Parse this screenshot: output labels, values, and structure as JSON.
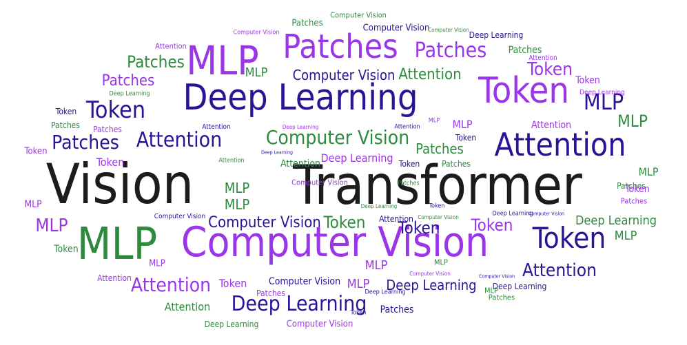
{
  "title_words": {
    "vision": "Vision",
    "transformer": "Transformer"
  },
  "words": [
    {
      "text": "Computer Vision",
      "color": "#9b35e8"
    },
    {
      "text": "MLP",
      "color": "#2e8b3e"
    },
    {
      "text": "Deep Learning",
      "color": "#2b1396"
    },
    {
      "text": "Token",
      "color": "#9b35e8"
    },
    {
      "text": "Attention",
      "color": "#2b1396"
    },
    {
      "text": "Patches",
      "color": "#9b35e8"
    },
    {
      "text": "MLP",
      "color": "#9b35e8"
    },
    {
      "text": "Token",
      "color": "#2b1396"
    },
    {
      "text": "Token",
      "color": "#2b1396"
    },
    {
      "text": "Patches",
      "color": "#9b35e8"
    },
    {
      "text": "Attention",
      "color": "#2b1396"
    },
    {
      "text": "Patches",
      "color": "#2b1396"
    },
    {
      "text": "Computer Vision",
      "color": "#2e8b3e"
    },
    {
      "text": "Computer Vision",
      "color": "#2b1396"
    },
    {
      "text": "Deep Learning",
      "color": "#2b1396"
    },
    {
      "text": "MLP",
      "color": "#2b1396"
    },
    {
      "text": "Patches",
      "color": "#2e8b3e"
    },
    {
      "text": "Attention",
      "color": "#9b35e8"
    },
    {
      "text": "Attention",
      "color": "#2b1396"
    },
    {
      "text": "Token",
      "color": "#9b35e8"
    },
    {
      "text": "Token",
      "color": "#2b1396"
    },
    {
      "text": "Computer Vision",
      "color": "#2b1396"
    },
    {
      "text": "Attention",
      "color": "#2e8b3e"
    },
    {
      "text": "Deep Learning",
      "color": "#2e8b3e"
    },
    {
      "text": "MLP",
      "color": "#2e8b3e"
    },
    {
      "text": "MLP",
      "color": "#9b35e8"
    },
    {
      "text": "Patches",
      "color": "#2e8b3e"
    },
    {
      "text": "Token",
      "color": "#9b35e8"
    },
    {
      "text": "Patches",
      "color": "#9b35e8"
    }
  ],
  "small_words": [
    {
      "text": "Patches",
      "color": "#2e8b3e"
    },
    {
      "text": "Computer Vision",
      "color": "#2e8b3e"
    },
    {
      "text": "Computer Vision",
      "color": "#2b1396"
    },
    {
      "text": "Computer Vision",
      "color": "#9b35e8"
    },
    {
      "text": "Computer Vision",
      "color": "#2e8b3e"
    },
    {
      "text": "Deep Learning",
      "color": "#2b1396"
    },
    {
      "text": "Attention",
      "color": "#9b35e8"
    },
    {
      "text": "Attention",
      "color": "#9b35e8"
    },
    {
      "text": "MLP",
      "color": "#2e8b3e"
    },
    {
      "text": "Deep Learning",
      "color": "#2e8b3e"
    },
    {
      "text": "Token",
      "color": "#9b35e8"
    },
    {
      "text": "Deep Learning",
      "color": "#9b35e8"
    },
    {
      "text": "MLP",
      "color": "#9b35e8"
    },
    {
      "text": "Token",
      "color": "#2b1396"
    },
    {
      "text": "Patches",
      "color": "#2e8b3e"
    },
    {
      "text": "Patches",
      "color": "#2e8b3e"
    },
    {
      "text": "Patches",
      "color": "#9b35e8"
    },
    {
      "text": "Attention",
      "color": "#2b1396"
    },
    {
      "text": "Deep Learning",
      "color": "#9b35e8"
    },
    {
      "text": "Attention",
      "color": "#2b1396"
    },
    {
      "text": "MLP",
      "color": "#9b35e8"
    },
    {
      "text": "Attention",
      "color": "#9b35e8"
    },
    {
      "text": "Token",
      "color": "#9b35e8"
    },
    {
      "text": "Token",
      "color": "#2b1396"
    },
    {
      "text": "Patches",
      "color": "#2e8b3e"
    },
    {
      "text": "Token",
      "color": "#9b35e8"
    },
    {
      "text": "Deep Learning",
      "color": "#2b1396"
    },
    {
      "text": "Attention",
      "color": "#2e8b3e"
    },
    {
      "text": "Deep Learning",
      "color": "#9b35e8"
    },
    {
      "text": "Token",
      "color": "#2b1396"
    },
    {
      "text": "Patches",
      "color": "#2e8b3e"
    },
    {
      "text": "Attention",
      "color": "#2e8b3e"
    },
    {
      "text": "Computer Vision",
      "color": "#9b35e8"
    },
    {
      "text": "MLP",
      "color": "#2e8b3e"
    },
    {
      "text": "MLP",
      "color": "#2e8b3e"
    },
    {
      "text": "MLP",
      "color": "#2e8b3e"
    },
    {
      "text": "Token",
      "color": "#9b35e8"
    },
    {
      "text": "Patches",
      "color": "#9b35e8"
    },
    {
      "text": "MLP",
      "color": "#9b35e8"
    },
    {
      "text": "MLP",
      "color": "#9b35e8"
    },
    {
      "text": "Token",
      "color": "#2e8b3e"
    },
    {
      "text": "Computer Vision",
      "color": "#2b1396"
    },
    {
      "text": "Token",
      "color": "#2e8b3e"
    },
    {
      "text": "Attention",
      "color": "#2b1396"
    },
    {
      "text": "Computer Vision",
      "color": "#2e8b3e"
    },
    {
      "text": "Token",
      "color": "#2b1396"
    },
    {
      "text": "Deep Learning",
      "color": "#2b1396"
    },
    {
      "text": "Computer Vision",
      "color": "#2b1396"
    },
    {
      "text": "Deep Learning",
      "color": "#2e8b3e"
    },
    {
      "text": "MLP",
      "color": "#2e8b3e"
    },
    {
      "text": "MLP",
      "color": "#9b35e8"
    },
    {
      "text": "Attention",
      "color": "#9b35e8"
    },
    {
      "text": "MLP",
      "color": "#2e8b3e"
    },
    {
      "text": "Token",
      "color": "#9b35e8"
    },
    {
      "text": "Computer Vision",
      "color": "#2b1396"
    },
    {
      "text": "MLP",
      "color": "#9b35e8"
    },
    {
      "text": "Computer Vision",
      "color": "#9b35e8"
    },
    {
      "text": "Deep Learning",
      "color": "#2b1396"
    },
    {
      "text": "Patches",
      "color": "#9b35e8"
    },
    {
      "text": "Computer Vision",
      "color": "#2b1396"
    },
    {
      "text": "Deep Learning",
      "color": "#2b1396"
    },
    {
      "text": "MLP",
      "color": "#2e8b3e"
    },
    {
      "text": "Attention",
      "color": "#2e8b3e"
    },
    {
      "text": "Deep Learning",
      "color": "#2b1396"
    },
    {
      "text": "Patches",
      "color": "#2e8b3e"
    },
    {
      "text": "Patches",
      "color": "#2b1396"
    },
    {
      "text": "Deep Learning",
      "color": "#2e8b3e"
    },
    {
      "text": "Computer Vision",
      "color": "#9b35e8"
    },
    {
      "text": "Token",
      "color": "#2b1396"
    },
    {
      "text": "Patches",
      "color": "#2e8b3e"
    }
  ]
}
